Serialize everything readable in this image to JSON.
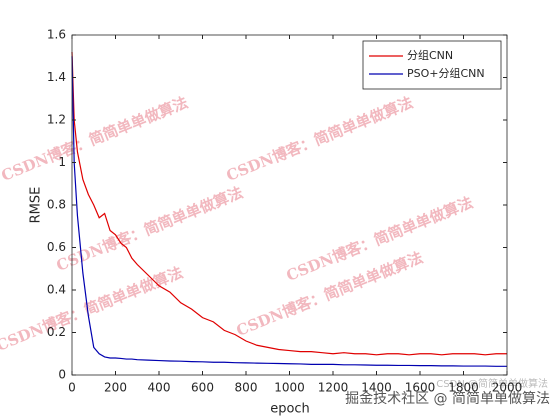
{
  "chart_data": {
    "type": "line",
    "xlabel": "epoch",
    "ylabel": "RMSE",
    "x": [
      0,
      10,
      25,
      50,
      75,
      100,
      125,
      150,
      175,
      200,
      225,
      250,
      275,
      300,
      350,
      400,
      450,
      500,
      550,
      600,
      650,
      700,
      750,
      800,
      850,
      900,
      950,
      1000,
      1050,
      1100,
      1150,
      1200,
      1250,
      1300,
      1350,
      1400,
      1450,
      1500,
      1550,
      1600,
      1650,
      1700,
      1750,
      1800,
      1850,
      1900,
      1950,
      2000
    ],
    "series": [
      {
        "name": "分组CNN",
        "color": "#e00000",
        "values": [
          1.52,
          1.2,
          1.05,
          0.92,
          0.85,
          0.8,
          0.74,
          0.76,
          0.68,
          0.66,
          0.62,
          0.6,
          0.55,
          0.52,
          0.47,
          0.42,
          0.39,
          0.34,
          0.31,
          0.27,
          0.25,
          0.21,
          0.19,
          0.16,
          0.14,
          0.13,
          0.12,
          0.115,
          0.11,
          0.11,
          0.105,
          0.1,
          0.105,
          0.1,
          0.1,
          0.095,
          0.1,
          0.1,
          0.095,
          0.1,
          0.1,
          0.095,
          0.1,
          0.1,
          0.1,
          0.095,
          0.1,
          0.1
        ]
      },
      {
        "name": "PSO+分组CNN",
        "color": "#0000b0",
        "values": [
          1.5,
          1.0,
          0.75,
          0.48,
          0.28,
          0.13,
          0.1,
          0.085,
          0.08,
          0.08,
          0.078,
          0.075,
          0.075,
          0.072,
          0.07,
          0.068,
          0.066,
          0.065,
          0.063,
          0.062,
          0.06,
          0.06,
          0.058,
          0.057,
          0.056,
          0.055,
          0.054,
          0.053,
          0.052,
          0.05,
          0.05,
          0.05,
          0.048,
          0.048,
          0.047,
          0.046,
          0.046,
          0.045,
          0.045,
          0.044,
          0.044,
          0.043,
          0.043,
          0.042,
          0.042,
          0.042,
          0.041,
          0.041
        ]
      }
    ],
    "xlim": [
      0,
      2000
    ],
    "xticks": [
      0,
      200,
      400,
      600,
      800,
      1000,
      1200,
      1400,
      1600,
      1800,
      2000
    ],
    "ylim": [
      0,
      1.6
    ],
    "yticks": [
      0,
      0.2,
      0.4,
      0.6,
      0.8,
      1,
      1.2,
      1.4,
      1.6
    ],
    "grid": false,
    "legend": "northeast"
  },
  "watermarks": [
    "CSDN博客：简简单单做算法",
    "CSDN博客：简简单单做算法",
    "CSDN博客：简简单单做算法",
    "CSDN博客：简简单单做算法",
    "CSDN博客：简简单单做算法",
    "CSDN博客：简简单单做算法"
  ],
  "footer": "掘金技术社区 @ 简简单单做算法",
  "footer_small": "CSDN @简简单单做算法"
}
